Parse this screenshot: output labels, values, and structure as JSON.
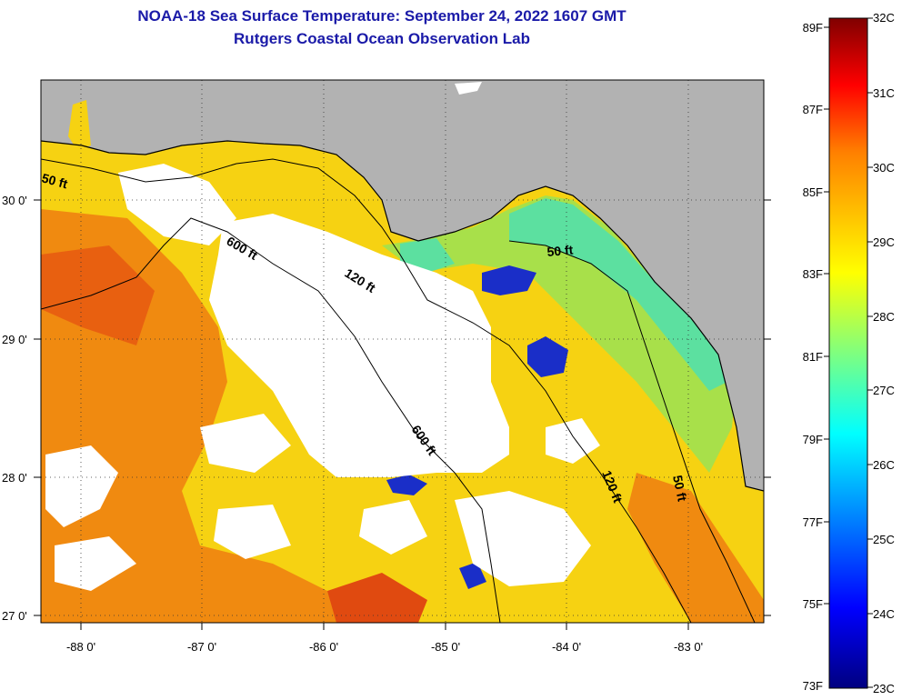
{
  "title": {
    "line1": "NOAA-18 Sea Surface Temperature:  September 24, 2022 1607 GMT",
    "line2": "Rutgers Coastal Ocean Observation Lab"
  },
  "map": {
    "x_axis_labels": [
      "-88 0'",
      "-87 0'",
      "-86 0'",
      "-85 0'",
      "-84 0'",
      "-83 0'"
    ],
    "y_axis_labels": [
      "30 0'",
      "29 0'",
      "28 0'",
      "27 0'"
    ],
    "contour_labels": [
      "50 ft",
      "600 ft",
      "120 ft",
      "50 ft",
      "600 ft",
      "120 ft",
      "50 ft"
    ]
  },
  "colorbar": {
    "fahrenheit_labels": [
      "89F",
      "87F",
      "85F",
      "83F",
      "81F",
      "79F",
      "77F",
      "75F",
      "73F"
    ],
    "celsius_labels": [
      "32C",
      "31C",
      "30C",
      "29C",
      "28C",
      "27C",
      "26C",
      "25C",
      "24C",
      "23C"
    ]
  },
  "colors": {
    "title": "#1a1aa8",
    "land": "#b2b2b2",
    "cloud": "#ffffff",
    "warm": "#f08a10",
    "mid": "#f6d212",
    "cool": "#a8e04a",
    "coastal": "#5ce0a0",
    "cold_patch": "#1a2ec8"
  }
}
